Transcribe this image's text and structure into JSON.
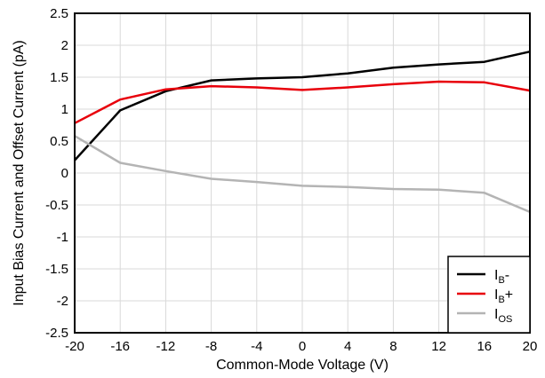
{
  "chart_data": {
    "type": "line",
    "xlabel": "Common-Mode Voltage (V)",
    "ylabel": "Input Bias Current and Offset Current (pA)",
    "xlim": [
      -20,
      20
    ],
    "ylim": [
      -2.5,
      2.5
    ],
    "x_ticks": [
      -20,
      -16,
      -12,
      -8,
      -4,
      0,
      4,
      8,
      12,
      16,
      20
    ],
    "y_ticks": [
      2.5,
      2,
      1.5,
      1,
      0.5,
      0,
      -0.5,
      -1,
      -1.5,
      -2,
      -2.5
    ],
    "grid": true,
    "legend_position": "bottom-right",
    "series": [
      {
        "name": "IB-",
        "label_main": "I",
        "label_sub": "B",
        "label_suffix": "-",
        "color": "#000000",
        "x": [
          -20,
          -16,
          -12,
          -8,
          -4,
          0,
          4,
          8,
          12,
          16,
          20
        ],
        "y": [
          0.2,
          0.98,
          1.28,
          1.45,
          1.48,
          1.5,
          1.56,
          1.65,
          1.7,
          1.74,
          1.9
        ]
      },
      {
        "name": "IB+",
        "label_main": "I",
        "label_sub": "B",
        "label_suffix": "+",
        "color": "#e8000b",
        "x": [
          -20,
          -16,
          -12,
          -8,
          -4,
          0,
          4,
          8,
          12,
          16,
          20
        ],
        "y": [
          0.78,
          1.15,
          1.31,
          1.36,
          1.34,
          1.3,
          1.34,
          1.39,
          1.43,
          1.42,
          1.29
        ]
      },
      {
        "name": "IOS",
        "label_main": "I",
        "label_sub": "OS",
        "label_suffix": "",
        "color": "#b4b4b4",
        "x": [
          -20,
          -16,
          -12,
          -8,
          -4,
          0,
          4,
          8,
          12,
          16,
          20
        ],
        "y": [
          0.58,
          0.16,
          0.03,
          -0.09,
          -0.14,
          -0.2,
          -0.22,
          -0.25,
          -0.26,
          -0.31,
          -0.61
        ]
      }
    ]
  }
}
